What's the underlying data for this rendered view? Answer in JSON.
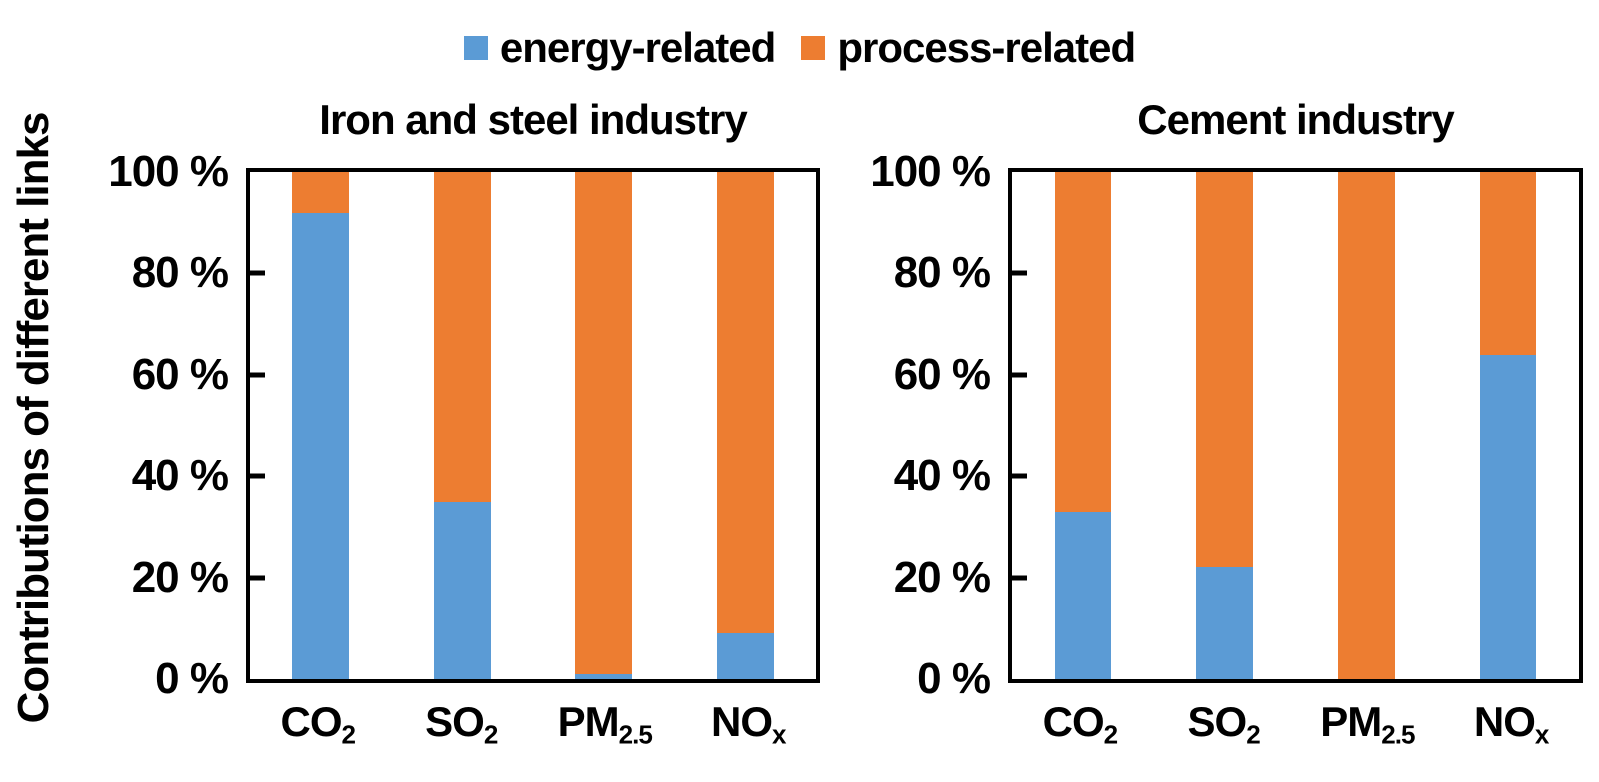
{
  "legend": {
    "items": [
      {
        "label": "energy-related",
        "color": "#5B9BD5"
      },
      {
        "label": "process-related",
        "color": "#ED7D31"
      }
    ]
  },
  "y_axis_title": "Contributions of different links",
  "colors": {
    "energy": "#5B9BD5",
    "process": "#ED7D31",
    "axis": "#000000"
  },
  "chart_data": [
    {
      "type": "bar",
      "stacked": true,
      "title": "Iron and steel industry",
      "categories": [
        "CO2",
        "SO2",
        "PM2.5",
        "NOx"
      ],
      "categories_rich": [
        {
          "base": "CO",
          "sub": "2"
        },
        {
          "base": "SO",
          "sub": "2"
        },
        {
          "base": "PM",
          "sub": "2.5"
        },
        {
          "base": "NO",
          "sub": "x"
        }
      ],
      "series": [
        {
          "name": "energy-related",
          "color": "#5B9BD5",
          "values": [
            92,
            35,
            1,
            9
          ]
        },
        {
          "name": "process-related",
          "color": "#ED7D31",
          "values": [
            8,
            65,
            99,
            91
          ]
        }
      ],
      "xlabel": "",
      "ylabel": "Contributions of different links",
      "ylim": [
        0,
        100
      ],
      "grid": false,
      "legend_position": "top-center",
      "yticks": [
        {
          "value": 0,
          "label": "0 %"
        },
        {
          "value": 20,
          "label": "20 %"
        },
        {
          "value": 40,
          "label": "40 %"
        },
        {
          "value": 60,
          "label": "60 %"
        },
        {
          "value": 80,
          "label": "80 %"
        },
        {
          "value": 100,
          "label": "100 %"
        }
      ]
    },
    {
      "type": "bar",
      "stacked": true,
      "title": "Cement industry",
      "categories": [
        "CO2",
        "SO2",
        "PM2.5",
        "NOx"
      ],
      "categories_rich": [
        {
          "base": "CO",
          "sub": "2"
        },
        {
          "base": "SO",
          "sub": "2"
        },
        {
          "base": "PM",
          "sub": "2.5"
        },
        {
          "base": "NO",
          "sub": "x"
        }
      ],
      "series": [
        {
          "name": "energy-related",
          "color": "#5B9BD5",
          "values": [
            33,
            22,
            0,
            64
          ]
        },
        {
          "name": "process-related",
          "color": "#ED7D31",
          "values": [
            67,
            78,
            100,
            36
          ]
        }
      ],
      "xlabel": "",
      "ylabel": "Contributions of different links",
      "ylim": [
        0,
        100
      ],
      "grid": false,
      "legend_position": "top-center",
      "yticks": [
        {
          "value": 0,
          "label": "0 %"
        },
        {
          "value": 20,
          "label": "20 %"
        },
        {
          "value": 40,
          "label": "40 %"
        },
        {
          "value": 60,
          "label": "60 %"
        },
        {
          "value": 80,
          "label": "80 %"
        },
        {
          "value": 100,
          "label": "100 %"
        }
      ]
    }
  ]
}
